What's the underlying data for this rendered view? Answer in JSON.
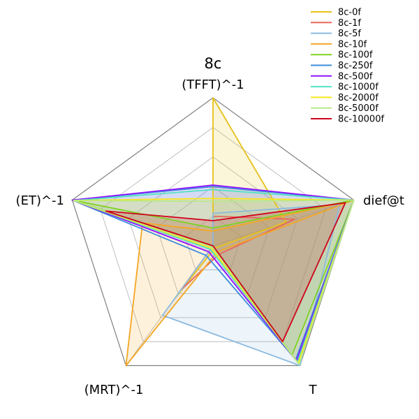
{
  "chart_data": {
    "type": "radar",
    "title": "8c",
    "axes": [
      "(TFFT)^-1",
      "dief@t",
      "T",
      "(MRT)^-1",
      "(ET)^-1"
    ],
    "rlim": [
      0,
      1
    ],
    "grid": true,
    "legend_position": "top-right",
    "series": [
      {
        "name": "8c-0f",
        "color": "#e6c21a",
        "fill": true,
        "values": [
          1.0,
          0.52,
          0.02,
          0.45,
          0.0
        ]
      },
      {
        "name": "8c-1f",
        "color": "#e8665a",
        "fill": false,
        "values": [
          0.2,
          0.58,
          0.07,
          0.37,
          0.0
        ]
      },
      {
        "name": "8c-5f",
        "color": "#8cbadf",
        "fill": true,
        "values": [
          0.22,
          0.9,
          1.0,
          0.58,
          0.0
        ]
      },
      {
        "name": "8c-10f",
        "color": "#f5a623",
        "fill": true,
        "values": [
          0.1,
          0.98,
          0.05,
          1.0,
          0.5
        ]
      },
      {
        "name": "8c-100f",
        "color": "#7ed321",
        "fill": true,
        "values": [
          0.12,
          1.0,
          0.91,
          0.0,
          1.0
        ]
      },
      {
        "name": "8c-250f",
        "color": "#3d8ddb",
        "fill": false,
        "values": [
          0.4,
          1.0,
          0.95,
          0.08,
          1.0
        ]
      },
      {
        "name": "8c-500f",
        "color": "#9013fe",
        "fill": true,
        "values": [
          0.41,
          1.0,
          0.96,
          0.05,
          1.0
        ]
      },
      {
        "name": "8c-1000f",
        "color": "#50e3c2",
        "fill": true,
        "values": [
          0.38,
          1.0,
          0.97,
          0.03,
          0.99
        ]
      },
      {
        "name": "8c-2000f",
        "color": "#f8e71c",
        "fill": true,
        "values": [
          0.32,
          1.0,
          0.98,
          0.02,
          0.99
        ]
      },
      {
        "name": "8c-5000f",
        "color": "#b8e986",
        "fill": true,
        "values": [
          0.3,
          1.0,
          0.99,
          0.01,
          0.99
        ]
      },
      {
        "name": "8c-10000f",
        "color": "#d0021b",
        "fill": true,
        "values": [
          0.17,
          0.94,
          0.8,
          0.0,
          0.76
        ]
      }
    ]
  }
}
